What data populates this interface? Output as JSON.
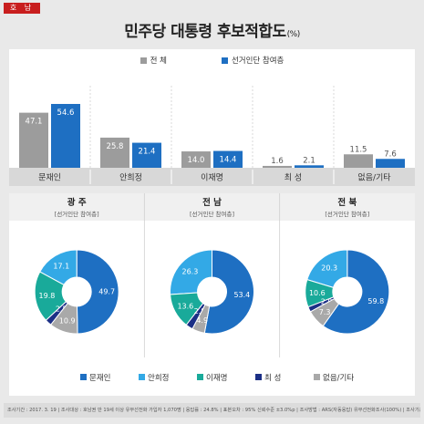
{
  "region_tag": "호 남",
  "title": "민주당 대통령 후보적합도",
  "title_unit": "(%)",
  "colors": {
    "all": "#9c9c9c",
    "participants": "#1e6fc2",
    "moon": "#1e6fc2",
    "ahn": "#33a9e6",
    "lee": "#19aa9a",
    "choi": "#1b2f86",
    "none": "#a9a9a9",
    "divider": "#c0c0c0",
    "labelband": "#d8d8d8"
  },
  "chart_data": [
    {
      "type": "bar",
      "categories": [
        "문재인",
        "안희정",
        "이재명",
        "최 성",
        "없음/기타"
      ],
      "series": [
        {
          "name": "전 체",
          "values": [
            47.1,
            25.8,
            14.0,
            1.6,
            11.5
          ]
        },
        {
          "name": "선거인단 참여층",
          "values": [
            54.6,
            21.4,
            14.4,
            2.1,
            7.6
          ]
        }
      ],
      "legend": [
        "전 체",
        "선거인단 참여층"
      ],
      "legend_position": "top-center"
    },
    {
      "type": "pie",
      "title": "광 주",
      "subtitle": "[선거인단 참여층]",
      "labels": [
        "문재인",
        "안희정",
        "이재명",
        "최 성",
        "없음/기타"
      ],
      "values": [
        49.7,
        17.1,
        19.8,
        2.5,
        10.9
      ]
    },
    {
      "type": "pie",
      "title": "전 남",
      "subtitle": "[선거인단 참여층]",
      "labels": [
        "문재인",
        "안희정",
        "이재명",
        "최 성",
        "없음/기타"
      ],
      "values": [
        53.4,
        26.3,
        13.6,
        2.8,
        4.9
      ]
    },
    {
      "type": "pie",
      "title": "전 북",
      "subtitle": "[선거인단 참여층]",
      "labels": [
        "문재인",
        "안희정",
        "이재명",
        "최 성",
        "없음/기타"
      ],
      "values": [
        59.8,
        20.3,
        10.6,
        2.0,
        7.3
      ]
    }
  ],
  "pie_legend": [
    "문재인",
    "안희정",
    "이재명",
    "최 성",
    "없음/기타"
  ],
  "footnote": "조사기간 : 2017. 3. 19 | 조사대상 : 호남권 만 19세 이상 유무선전화 가입자 1,070명 | 응답률 : 24.8% | 표본오차 : 95% 신뢰수준 ±3.0%p | 조사방법 : ARS(자동응답) 유무선전화조사(100%) | 조사기관 : 리서치뷰"
}
